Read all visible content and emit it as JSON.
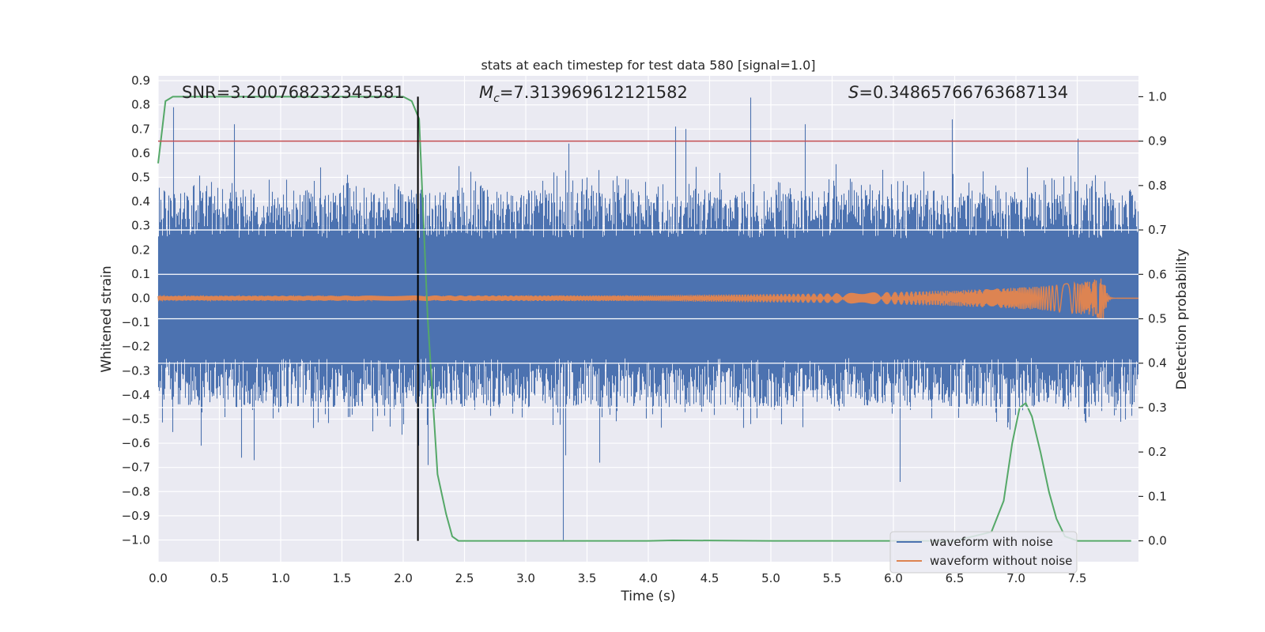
{
  "chart_data": {
    "type": "line",
    "title": "stats at each timestep for test data 580 [signal=1.0]",
    "xlabel": "Time (s)",
    "ylabel": "Whitened strain",
    "y2label": "Detection probability",
    "xlim": [
      0.0,
      8.0
    ],
    "ylim": [
      -1.09,
      0.92
    ],
    "y2lim": [
      -0.047,
      1.047
    ],
    "xticks": [
      0.0,
      0.5,
      1.0,
      1.5,
      2.0,
      2.5,
      3.0,
      3.5,
      4.0,
      4.5,
      5.0,
      5.5,
      6.0,
      6.5,
      7.0,
      7.5
    ],
    "xtick_labels": [
      "0.0",
      "0.5",
      "1.0",
      "1.5",
      "2.0",
      "2.5",
      "3.0",
      "3.5",
      "4.0",
      "4.5",
      "5.0",
      "5.5",
      "6.0",
      "6.5",
      "7.0",
      "7.5"
    ],
    "yticks": [
      0.9,
      0.8,
      0.7,
      0.6,
      0.5,
      0.4,
      0.3,
      0.2,
      0.1,
      0.0,
      -0.1,
      -0.2,
      -0.3,
      -0.4,
      -0.5,
      -0.6,
      -0.7,
      -0.8,
      -0.9,
      -1.0
    ],
    "ytick_labels": [
      "0.9",
      "0.8",
      "0.7",
      "0.6",
      "0.5",
      "0.4",
      "0.3",
      "0.2",
      "0.1",
      "0.0",
      "−0.1",
      "−0.2",
      "−0.3",
      "−0.4",
      "−0.5",
      "−0.6",
      "−0.7",
      "−0.8",
      "−0.9",
      "−1.0"
    ],
    "y2ticks": [
      1.0,
      0.9,
      0.8,
      0.7,
      0.6,
      0.5,
      0.4,
      0.3,
      0.2,
      0.1,
      0.0
    ],
    "y2tick_labels": [
      "1.0",
      "0.9",
      "0.8",
      "0.7",
      "0.6",
      "0.5",
      "0.4",
      "0.3",
      "0.2",
      "0.1",
      "0.0"
    ],
    "annotations": {
      "snr": "SNR=3.200768232345581",
      "mc_symbol": "M",
      "mc_sub": "c",
      "mc_value": "=7.313969612121582",
      "s_symbol": "S",
      "s_value": "=0.34865766763687134"
    },
    "threshold_probability": 0.9,
    "detection_time": 2.12,
    "series": [
      {
        "name": "waveform with noise",
        "color": "#4c72b0",
        "axis": "left",
        "description": "whitened noisy strain sampled across 0–8 s",
        "typical_envelope": [
          -0.45,
          0.45
        ],
        "peaks": [
          [
            0.12,
            0.79
          ],
          [
            0.35,
            -0.61
          ],
          [
            0.62,
            0.72
          ],
          [
            0.68,
            -0.66
          ],
          [
            0.78,
            -0.67
          ],
          [
            2.12,
            -0.61
          ],
          [
            2.2,
            -0.69
          ],
          [
            3.3,
            -1.0
          ],
          [
            3.32,
            -0.65
          ],
          [
            3.35,
            0.64
          ],
          [
            3.6,
            -0.68
          ],
          [
            4.22,
            0.71
          ],
          [
            4.3,
            0.7
          ],
          [
            4.83,
            0.83
          ],
          [
            5.28,
            0.72
          ],
          [
            6.05,
            -0.76
          ],
          [
            6.48,
            0.74
          ],
          [
            7.5,
            0.66
          ]
        ]
      },
      {
        "name": "waveform without noise",
        "color": "#dd8452",
        "axis": "left",
        "description": "clean chirp, amplitude growing to merger near 7.72 s then ringdown to 0",
        "amplitude_profile": [
          [
            0.0,
            0.01
          ],
          [
            4.0,
            0.012
          ],
          [
            5.5,
            0.02
          ],
          [
            6.5,
            0.032
          ],
          [
            7.2,
            0.048
          ],
          [
            7.6,
            0.07
          ],
          [
            7.72,
            0.09
          ]
        ],
        "merger_peak": [
          7.72,
          -0.1
        ]
      },
      {
        "name": "detection probability",
        "color": "#55a868",
        "axis": "right",
        "x": [
          0.0,
          0.03,
          0.06,
          0.12,
          0.2,
          0.5,
          1.0,
          1.5,
          1.9,
          2.0,
          2.07,
          2.13,
          2.2,
          2.28,
          2.35,
          2.4,
          2.45,
          2.6,
          3.0,
          4.0,
          4.2,
          5.0,
          6.0,
          6.5,
          6.8,
          6.9,
          6.97,
          7.03,
          7.08,
          7.13,
          7.2,
          7.27,
          7.33,
          7.4,
          7.5,
          7.94
        ],
        "values": [
          0.85,
          0.92,
          0.99,
          1.0,
          1.0,
          1.0,
          1.0,
          1.0,
          1.0,
          1.0,
          0.99,
          0.95,
          0.5,
          0.15,
          0.06,
          0.01,
          0.0,
          0.0,
          0.0,
          0.0,
          0.001,
          0.0,
          0.0,
          0.0,
          0.02,
          0.09,
          0.22,
          0.3,
          0.31,
          0.28,
          0.2,
          0.11,
          0.05,
          0.01,
          0.0,
          0.0
        ]
      },
      {
        "name": "threshold",
        "color": "#c44e52",
        "axis": "right",
        "value": 0.9
      },
      {
        "name": "detection marker",
        "color": "#000000",
        "x": 2.12
      }
    ],
    "legend": {
      "position": "lower-right",
      "entries": [
        {
          "label": "waveform with noise",
          "color": "#4c72b0"
        },
        {
          "label": "waveform without noise",
          "color": "#dd8452"
        }
      ]
    },
    "grid": true
  }
}
